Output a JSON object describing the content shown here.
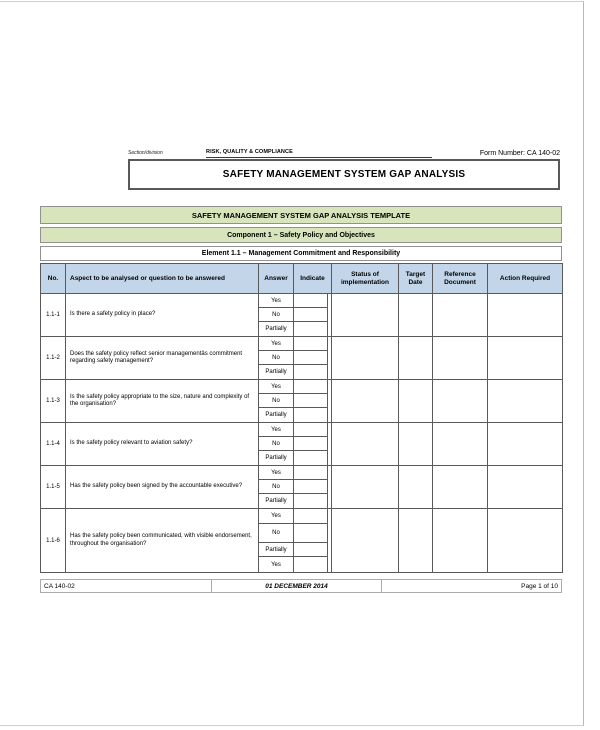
{
  "header": {
    "section_label": "Section/division",
    "department": "RISK, QUALITY & COMPLIANCE",
    "form_number": "Form Number: CA 140-02",
    "title": "SAFETY MANAGEMENT SYSTEM GAP ANALYSIS"
  },
  "banners": {
    "template_title": "SAFETY MANAGEMENT SYSTEM GAP ANALYSIS TEMPLATE",
    "component_title": "Component 1 – Safety Policy and Objectives",
    "element_title": "Element 1.1 – Management Commitment and Responsibility"
  },
  "table": {
    "columns": [
      "No.",
      "Aspect to be analysed or question to be answered",
      "Answer",
      "Indicate",
      "Status of implementation",
      "Target Date",
      "Reference Document",
      "Action Required"
    ],
    "rows": [
      {
        "no": "1.1-1",
        "question": "Is there a safety policy in place?",
        "answers": [
          "Yes",
          "No",
          "Partially"
        ]
      },
      {
        "no": "1.1-2",
        "question": "Does the safety policy reflect senior managementâs commitment regarding safety management?",
        "answers": [
          "Yes",
          "No",
          "Partially"
        ]
      },
      {
        "no": "1.1-3",
        "question": "Is the safety policy appropriate to the size, nature and complexity of the organisation?",
        "answers": [
          "Yes",
          "No",
          "Partially"
        ]
      },
      {
        "no": "1.1-4",
        "question": "Is the safety policy relevant to aviation safety?",
        "answers": [
          "Yes",
          "No",
          "Partially"
        ]
      },
      {
        "no": "1.1-5",
        "question": "Has the safety policy been signed by the accountable executive?",
        "answers": [
          "Yes",
          "No",
          "Partially"
        ]
      },
      {
        "no": "1.1-6",
        "question": "Has the safety policy been communicated, with visible endorsement, throughout the organisation?",
        "answers": [
          "Yes",
          "No",
          "Partially",
          "Yes"
        ]
      }
    ]
  },
  "footer": {
    "form_code": "CA 140-02",
    "date": "01 DECEMBER 2014",
    "page": "Page 1 of 10"
  },
  "colors": {
    "green_bar": "#d8e4bc",
    "table_header_blue": "#c3d6e9"
  }
}
